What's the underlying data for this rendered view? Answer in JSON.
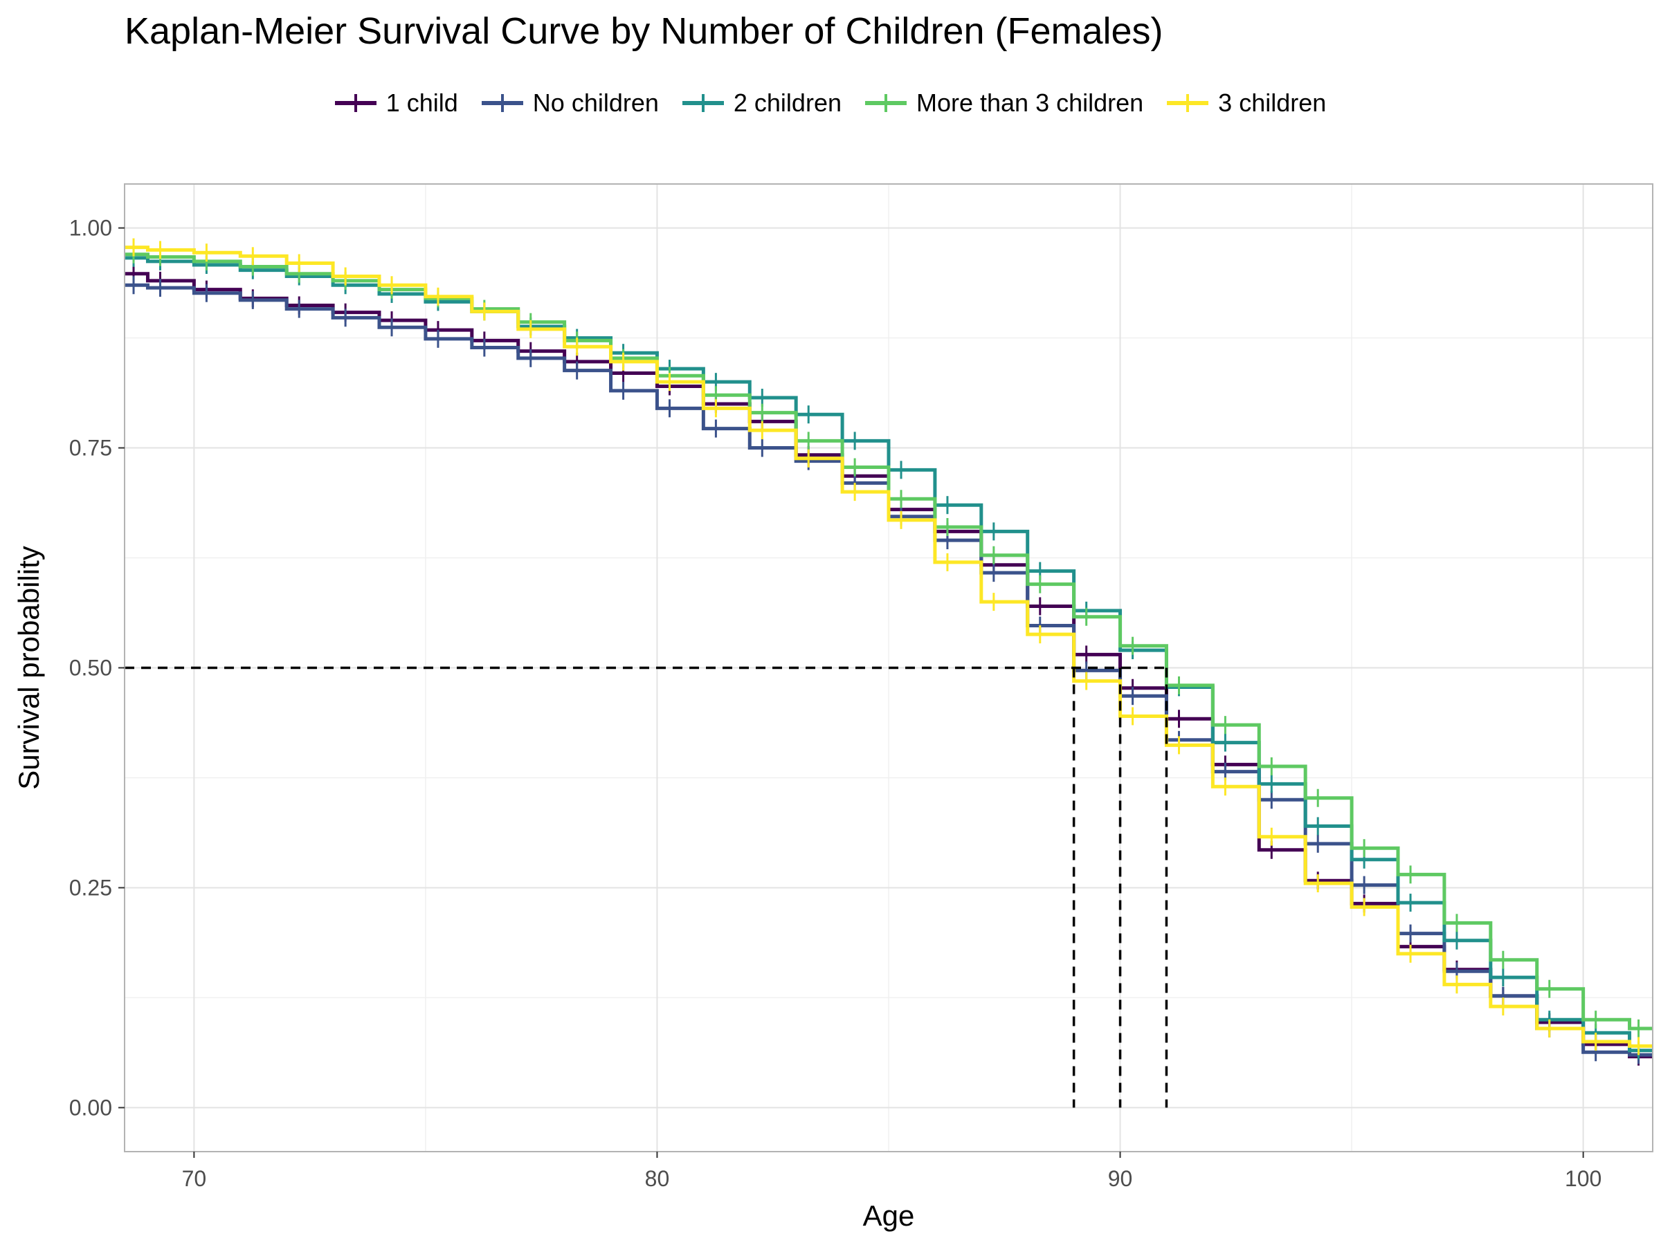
{
  "chart_data": {
    "type": "line",
    "step": true,
    "title": "Kaplan-Meier Survival Curve by Number of Children (Females)",
    "xlabel": "Age",
    "ylabel": "Survival probability",
    "xlim": [
      68.5,
      101.5
    ],
    "ylim": [
      -0.05,
      1.05
    ],
    "x_ticks": [
      70,
      80,
      90,
      100
    ],
    "y_ticks": [
      0,
      0.25,
      0.5,
      0.75,
      1.0
    ],
    "y_tick_labels": [
      "0.00",
      "0.25",
      "0.50",
      "0.75",
      "1.00"
    ],
    "grid": true,
    "legend_position": "top",
    "median_line": {
      "y": 0.5,
      "x": [
        89,
        90,
        91
      ]
    },
    "series": [
      {
        "name": "1 child",
        "color": "#440154",
        "x": [
          68.5,
          69,
          70,
          71,
          72,
          73,
          74,
          75,
          76,
          77,
          78,
          79,
          80,
          81,
          82,
          83,
          84,
          85,
          86,
          87,
          88,
          89,
          90,
          91,
          92,
          93,
          94,
          95,
          96,
          97,
          98,
          99,
          100,
          101
        ],
        "y": [
          0.948,
          0.94,
          0.93,
          0.92,
          0.912,
          0.904,
          0.895,
          0.884,
          0.872,
          0.86,
          0.848,
          0.835,
          0.82,
          0.8,
          0.78,
          0.742,
          0.718,
          0.68,
          0.655,
          0.617,
          0.57,
          0.515,
          0.477,
          0.442,
          0.39,
          0.293,
          0.258,
          0.232,
          0.183,
          0.157,
          0.127,
          0.097,
          0.072,
          0.058
        ]
      },
      {
        "name": "No children",
        "color": "#3b528b",
        "x": [
          68.5,
          69,
          70,
          71,
          72,
          73,
          74,
          75,
          76,
          77,
          78,
          79,
          80,
          81,
          82,
          83,
          84,
          85,
          86,
          87,
          88,
          89,
          90,
          91,
          92,
          93,
          94,
          95,
          96,
          97,
          98,
          99,
          100,
          101
        ],
        "y": [
          0.935,
          0.932,
          0.926,
          0.918,
          0.908,
          0.898,
          0.887,
          0.874,
          0.864,
          0.852,
          0.838,
          0.815,
          0.795,
          0.772,
          0.75,
          0.735,
          0.71,
          0.672,
          0.645,
          0.608,
          0.548,
          0.497,
          0.468,
          0.418,
          0.382,
          0.35,
          0.3,
          0.253,
          0.198,
          0.155,
          0.127,
          0.09,
          0.063,
          0.06
        ]
      },
      {
        "name": "2 children",
        "color": "#21908c",
        "x": [
          68.5,
          69,
          70,
          71,
          72,
          73,
          74,
          75,
          76,
          77,
          78,
          79,
          80,
          81,
          82,
          83,
          84,
          85,
          86,
          87,
          88,
          89,
          90,
          91,
          92,
          93,
          94,
          95,
          96,
          97,
          98,
          99,
          100,
          101
        ],
        "y": [
          0.966,
          0.962,
          0.958,
          0.952,
          0.945,
          0.935,
          0.925,
          0.916,
          0.905,
          0.888,
          0.875,
          0.858,
          0.84,
          0.825,
          0.807,
          0.788,
          0.758,
          0.725,
          0.685,
          0.655,
          0.61,
          0.565,
          0.52,
          0.478,
          0.415,
          0.368,
          0.32,
          0.282,
          0.233,
          0.19,
          0.148,
          0.1,
          0.085,
          0.065
        ]
      },
      {
        "name": "More than 3 children",
        "color": "#5ec962",
        "x": [
          68.5,
          69,
          70,
          71,
          72,
          73,
          74,
          75,
          76,
          77,
          78,
          79,
          80,
          81,
          82,
          83,
          84,
          85,
          86,
          87,
          88,
          89,
          90,
          91,
          92,
          93,
          94,
          95,
          96,
          97,
          98,
          99,
          100,
          101
        ],
        "y": [
          0.97,
          0.967,
          0.962,
          0.956,
          0.948,
          0.94,
          0.93,
          0.92,
          0.908,
          0.893,
          0.872,
          0.852,
          0.832,
          0.81,
          0.79,
          0.758,
          0.728,
          0.692,
          0.66,
          0.628,
          0.595,
          0.558,
          0.525,
          0.48,
          0.435,
          0.388,
          0.352,
          0.295,
          0.265,
          0.21,
          0.168,
          0.135,
          0.1,
          0.09
        ]
      },
      {
        "name": "3 children",
        "color": "#fde725",
        "x": [
          68.5,
          69,
          70,
          71,
          72,
          73,
          74,
          75,
          76,
          77,
          78,
          79,
          80,
          81,
          82,
          83,
          84,
          85,
          86,
          87,
          88,
          89,
          90,
          91,
          92,
          93,
          94,
          95,
          96,
          97,
          98,
          99,
          100,
          101
        ],
        "y": [
          0.978,
          0.975,
          0.972,
          0.968,
          0.96,
          0.945,
          0.935,
          0.922,
          0.905,
          0.885,
          0.865,
          0.848,
          0.825,
          0.795,
          0.77,
          0.738,
          0.7,
          0.668,
          0.62,
          0.575,
          0.538,
          0.485,
          0.445,
          0.412,
          0.365,
          0.308,
          0.255,
          0.228,
          0.175,
          0.14,
          0.115,
          0.09,
          0.075,
          0.07
        ]
      }
    ]
  }
}
